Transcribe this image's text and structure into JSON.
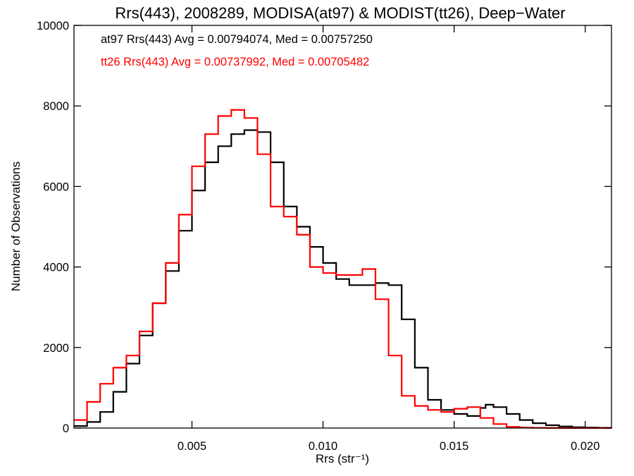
{
  "chart_data": {
    "type": "line",
    "step": true,
    "title": "Rrs(443), 2008289, MODISA(at97) & MODIST(tt26), Deep−Water",
    "xlabel": "Rrs (str⁻¹)",
    "ylabel": "Number of Observations",
    "xlim": [
      0.0005,
      0.021
    ],
    "ylim": [
      0,
      10000
    ],
    "x_ticks": [
      0.005,
      0.01,
      0.015,
      0.02
    ],
    "x_tick_labels": [
      "0.005",
      "0.010",
      "0.015",
      "0.020"
    ],
    "y_ticks": [
      0,
      2000,
      4000,
      6000,
      8000,
      10000
    ],
    "y_tick_labels": [
      "0",
      "2000",
      "4000",
      "6000",
      "8000",
      "10000"
    ],
    "grid": false,
    "annotations": [
      {
        "text": "at97 Rrs(443) Avg = 0.00794074, Med = 0.00757250",
        "color": "#000000"
      },
      {
        "text": "tt26 Rrs(443) Avg = 0.00737992, Med = 0.00705482",
        "color": "#ff0000"
      }
    ],
    "series": [
      {
        "color": "#000000",
        "x": [
          0.0005,
          0.001,
          0.0015,
          0.002,
          0.0025,
          0.003,
          0.0035,
          0.004,
          0.0045,
          0.005,
          0.0055,
          0.006,
          0.0065,
          0.007,
          0.0075,
          0.008,
          0.0085,
          0.009,
          0.0095,
          0.01,
          0.0105,
          0.011,
          0.0115,
          0.012,
          0.0125,
          0.013,
          0.0135,
          0.014,
          0.0145,
          0.015,
          0.0155,
          0.016,
          0.0162,
          0.0165,
          0.017,
          0.0175,
          0.018,
          0.0185,
          0.019,
          0.0195,
          0.02,
          0.0205,
          0.021
        ],
        "values": [
          50,
          150,
          400,
          900,
          1600,
          2300,
          3100,
          3900,
          4900,
          5900,
          6600,
          7000,
          7300,
          7400,
          7350,
          6600,
          5500,
          5000,
          4500,
          4100,
          3700,
          3550,
          3550,
          3600,
          3550,
          2700,
          1500,
          700,
          450,
          350,
          300,
          500,
          580,
          520,
          350,
          200,
          120,
          70,
          40,
          20,
          10,
          5,
          0
        ]
      },
      {
        "color": "#ff0000",
        "x": [
          0.0005,
          0.001,
          0.0015,
          0.002,
          0.0025,
          0.003,
          0.0035,
          0.004,
          0.0045,
          0.005,
          0.0055,
          0.006,
          0.0065,
          0.007,
          0.0075,
          0.008,
          0.0085,
          0.009,
          0.0095,
          0.01,
          0.0105,
          0.011,
          0.0115,
          0.012,
          0.0125,
          0.013,
          0.0135,
          0.014,
          0.0145,
          0.015,
          0.0155,
          0.016,
          0.0165,
          0.017,
          0.0175,
          0.018,
          0.0185,
          0.019,
          0.0195,
          0.02,
          0.021
        ],
        "values": [
          200,
          650,
          1100,
          1500,
          1800,
          2400,
          3100,
          4100,
          5300,
          6500,
          7300,
          7750,
          7900,
          7700,
          6800,
          5500,
          5250,
          4800,
          4000,
          3850,
          3800,
          3800,
          3950,
          3200,
          1800,
          800,
          550,
          450,
          400,
          480,
          520,
          250,
          100,
          30,
          10,
          5,
          2,
          0,
          0,
          0,
          0
        ]
      }
    ]
  }
}
